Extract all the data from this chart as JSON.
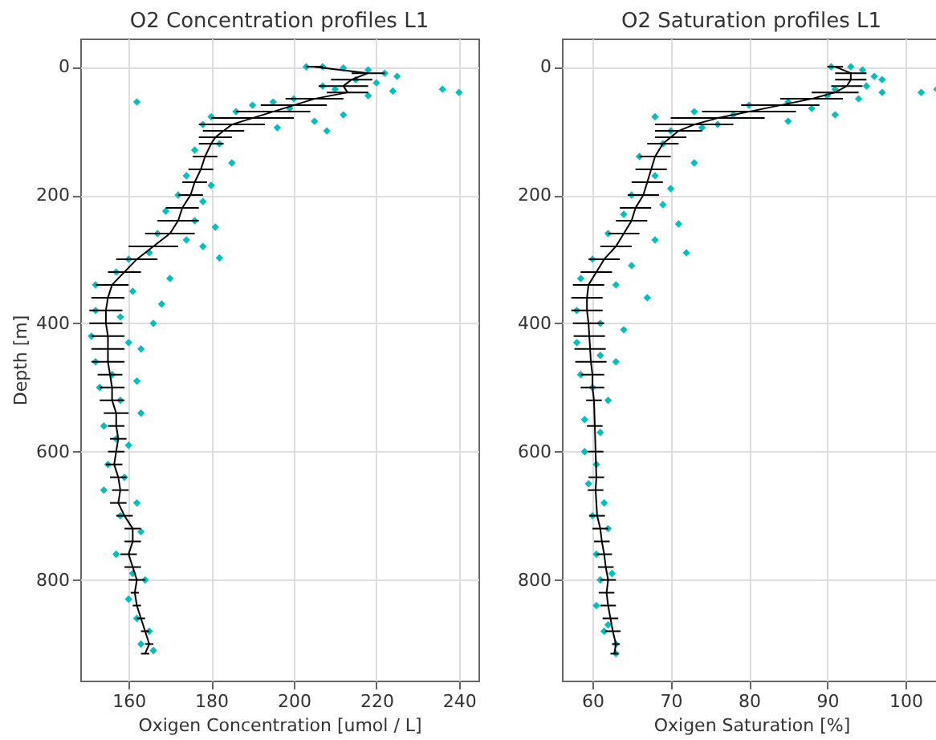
{
  "chart_data": [
    {
      "type": "scatter",
      "title": "O2 Concentration profiles L1",
      "xlabel": "Oxigen Concentration [umol / L]",
      "ylabel": "Depth [m]",
      "xlim": [
        148.3,
        244.7
      ],
      "xticks": [
        160,
        180,
        200,
        220,
        240
      ],
      "ylim": [
        957,
        -44
      ],
      "yticks": [
        0,
        200,
        400,
        600,
        800
      ],
      "grid": true,
      "series": [
        {
          "color": "#00bfbf",
          "marker": "diamond",
          "x": [
            203,
            207,
            212,
            218,
            222,
            225,
            215,
            220,
            207,
            210,
            224,
            240,
            236,
            218,
            200,
            195,
            162,
            190,
            199,
            186,
            212,
            180,
            205,
            208,
            178,
            196,
            185,
            176,
            182,
            174,
            180,
            172,
            178,
            169,
            176,
            181,
            167,
            174,
            178,
            165,
            182,
            160,
            157,
            170,
            152,
            161,
            168,
            152,
            158,
            166,
            151,
            160,
            163,
            152,
            156,
            162,
            153,
            158,
            163,
            154,
            157,
            160,
            155,
            159,
            154,
            162,
            158,
            163,
            157,
            161,
            164,
            160,
            162,
            165,
            166,
            163
          ],
          "values": [
            0,
            0,
            2,
            5,
            10,
            15,
            20,
            25,
            30,
            35,
            38,
            40,
            35,
            45,
            50,
            55,
            55,
            60,
            65,
            70,
            75,
            78,
            85,
            100,
            90,
            95,
            150,
            130,
            120,
            170,
            185,
            200,
            210,
            225,
            240,
            250,
            260,
            270,
            280,
            290,
            298,
            300,
            320,
            330,
            340,
            350,
            370,
            380,
            390,
            400,
            420,
            430,
            440,
            460,
            480,
            490,
            500,
            520,
            540,
            560,
            580,
            590,
            620,
            640,
            660,
            680,
            700,
            725,
            760,
            790,
            800,
            830,
            860,
            880,
            910,
            900
          ]
        },
        {
          "type": "line",
          "color": "#000000",
          "x": [
            205,
            218,
            214,
            212,
            213,
            205,
            200,
            195,
            190,
            185,
            183,
            181,
            180,
            178.5,
            177.5,
            176,
            175,
            173,
            172,
            170,
            166,
            162,
            159,
            156,
            155,
            154.5,
            154.5,
            155,
            155,
            155,
            155.5,
            156,
            156,
            157,
            157,
            157.5,
            157,
            156.5,
            157.5,
            158,
            157.5,
            159,
            161,
            161,
            160,
            161,
            162,
            161.5,
            162,
            163,
            164,
            165,
            164
          ],
          "values": [
            0,
            10,
            20,
            30,
            40,
            50,
            60,
            70,
            80,
            90,
            100,
            110,
            120,
            140,
            160,
            180,
            200,
            220,
            240,
            260,
            280,
            300,
            320,
            340,
            360,
            380,
            400,
            420,
            440,
            460,
            480,
            500,
            520,
            540,
            560,
            580,
            600,
            620,
            640,
            660,
            680,
            700,
            720,
            740,
            760,
            780,
            800,
            820,
            840,
            860,
            880,
            900,
            915
          ],
          "xerrors": [
            2,
            4,
            5,
            6,
            5,
            7,
            8,
            9,
            10,
            8,
            5,
            4,
            3,
            3,
            3,
            3,
            3,
            4,
            5,
            6,
            6,
            5,
            4,
            4,
            4,
            4,
            4,
            4,
            4,
            4,
            3,
            3,
            3,
            3,
            2,
            2,
            2,
            2,
            2,
            2,
            2,
            2,
            2,
            2,
            2,
            2,
            2,
            1,
            1,
            1,
            1,
            1,
            1
          ]
        }
      ]
    },
    {
      "type": "scatter",
      "title": "O2 Saturation profiles L1",
      "xlabel": "Oxigen Saturation [%]",
      "xlim": [
        56.1,
        104.5
      ],
      "xticks": [
        60,
        70,
        80,
        90,
        100
      ],
      "ylim": [
        957,
        -44
      ],
      "yticks": [
        0,
        200,
        400,
        600,
        800
      ],
      "grid": true,
      "series": [
        {
          "color": "#00bfbf",
          "marker": "diamond",
          "x": [
            90.5,
            93,
            94.5,
            96,
            97,
            95,
            91,
            97,
            90,
            94,
            104,
            102,
            85,
            80,
            88,
            73,
            78,
            68,
            85,
            91,
            76,
            70,
            74,
            69,
            73,
            66,
            68,
            70,
            65,
            69,
            64,
            71,
            62,
            68,
            72,
            60,
            65,
            58.5,
            63,
            67,
            58,
            61,
            64,
            58,
            61,
            63,
            58.5,
            60,
            62,
            59,
            61,
            59,
            60.5,
            59.5,
            61.5,
            60,
            62,
            60.5,
            62.5,
            61,
            60.5,
            62,
            63,
            61.5,
            63
          ],
          "values": [
            0,
            0,
            5,
            15,
            20,
            30,
            35,
            40,
            45,
            50,
            35,
            40,
            55,
            60,
            65,
            70,
            75,
            78,
            85,
            75,
            90,
            100,
            95,
            120,
            150,
            140,
            170,
            190,
            200,
            215,
            230,
            245,
            260,
            270,
            290,
            300,
            310,
            330,
            340,
            360,
            380,
            400,
            410,
            430,
            450,
            460,
            480,
            500,
            520,
            550,
            570,
            600,
            620,
            650,
            680,
            700,
            720,
            760,
            790,
            800,
            840,
            870,
            900,
            880,
            915
          ]
        },
        {
          "type": "line",
          "color": "#000000",
          "x": [
            91,
            93,
            93,
            92.5,
            91,
            88,
            84,
            80,
            76,
            73,
            71,
            70,
            69,
            68,
            67.5,
            67,
            66.5,
            65.5,
            65,
            64,
            63,
            61.5,
            60.5,
            59.5,
            59.3,
            59.3,
            59.5,
            59.6,
            59.7,
            59.8,
            60,
            60,
            60.2,
            60.3,
            60.4,
            60.5,
            60.4,
            60.6,
            61,
            61.2,
            61.5,
            61.7,
            62,
            61.8,
            62,
            62.3,
            62.6,
            63,
            62.8
          ],
          "values": [
            0,
            10,
            20,
            30,
            40,
            50,
            60,
            70,
            80,
            90,
            100,
            110,
            120,
            140,
            160,
            180,
            200,
            220,
            240,
            260,
            280,
            300,
            320,
            340,
            360,
            380,
            400,
            420,
            440,
            460,
            480,
            500,
            520,
            560,
            600,
            640,
            660,
            700,
            720,
            740,
            760,
            780,
            800,
            820,
            840,
            860,
            880,
            900,
            915
          ],
          "xerrors": [
            1,
            2,
            2,
            2,
            3,
            4,
            5,
            6,
            6,
            5,
            3,
            2,
            2,
            2,
            2,
            2,
            2,
            2,
            2,
            2,
            2,
            2,
            2,
            2,
            2,
            2,
            2,
            2,
            2,
            2,
            1.5,
            1.5,
            1,
            1,
            1,
            1,
            1,
            1,
            1,
            1,
            1,
            1,
            1,
            1,
            1,
            1,
            1,
            0.5,
            0.5
          ]
        }
      ]
    }
  ]
}
